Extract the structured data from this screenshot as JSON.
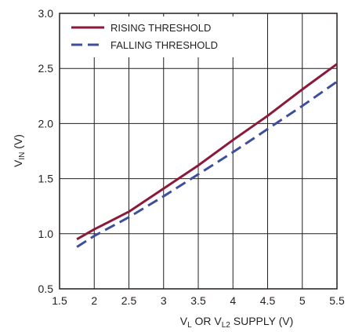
{
  "chart_data": {
    "type": "line",
    "title": "",
    "xlabel": {
      "p1": "V",
      "s1": "L",
      "p2": " OR V",
      "s2": "L2",
      "p3": " SUPPLY (V)"
    },
    "ylabel": {
      "p1": "V",
      "s1": "IN",
      "p2": " (V)"
    },
    "xlim": [
      1.5,
      5.5
    ],
    "ylim": [
      0.5,
      3.0
    ],
    "xticks": [
      "1.5",
      "2",
      "2.5",
      "3",
      "3.5",
      "4",
      "4.5",
      "5",
      "5.5"
    ],
    "yticks": [
      "0.5",
      "1.0",
      "1.5",
      "2.0",
      "2.5",
      "3.0"
    ],
    "grid": true,
    "legend_position": "top-left",
    "series": [
      {
        "name": "RISING THRESHOLD",
        "color": "#8b1a3a",
        "dash": "solid",
        "x": [
          1.75,
          2.0,
          2.5,
          3.0,
          3.5,
          4.0,
          4.5,
          5.0,
          5.5
        ],
        "y": [
          0.95,
          1.04,
          1.2,
          1.41,
          1.62,
          1.85,
          2.07,
          2.31,
          2.54
        ]
      },
      {
        "name": "FALLING THRESHOLD",
        "color": "#3d4f9c",
        "dash": "dashed",
        "x": [
          1.75,
          2.0,
          2.5,
          3.0,
          3.5,
          4.0,
          4.5,
          5.0,
          5.5
        ],
        "y": [
          0.88,
          0.98,
          1.15,
          1.34,
          1.54,
          1.74,
          1.95,
          2.16,
          2.38
        ]
      }
    ]
  }
}
